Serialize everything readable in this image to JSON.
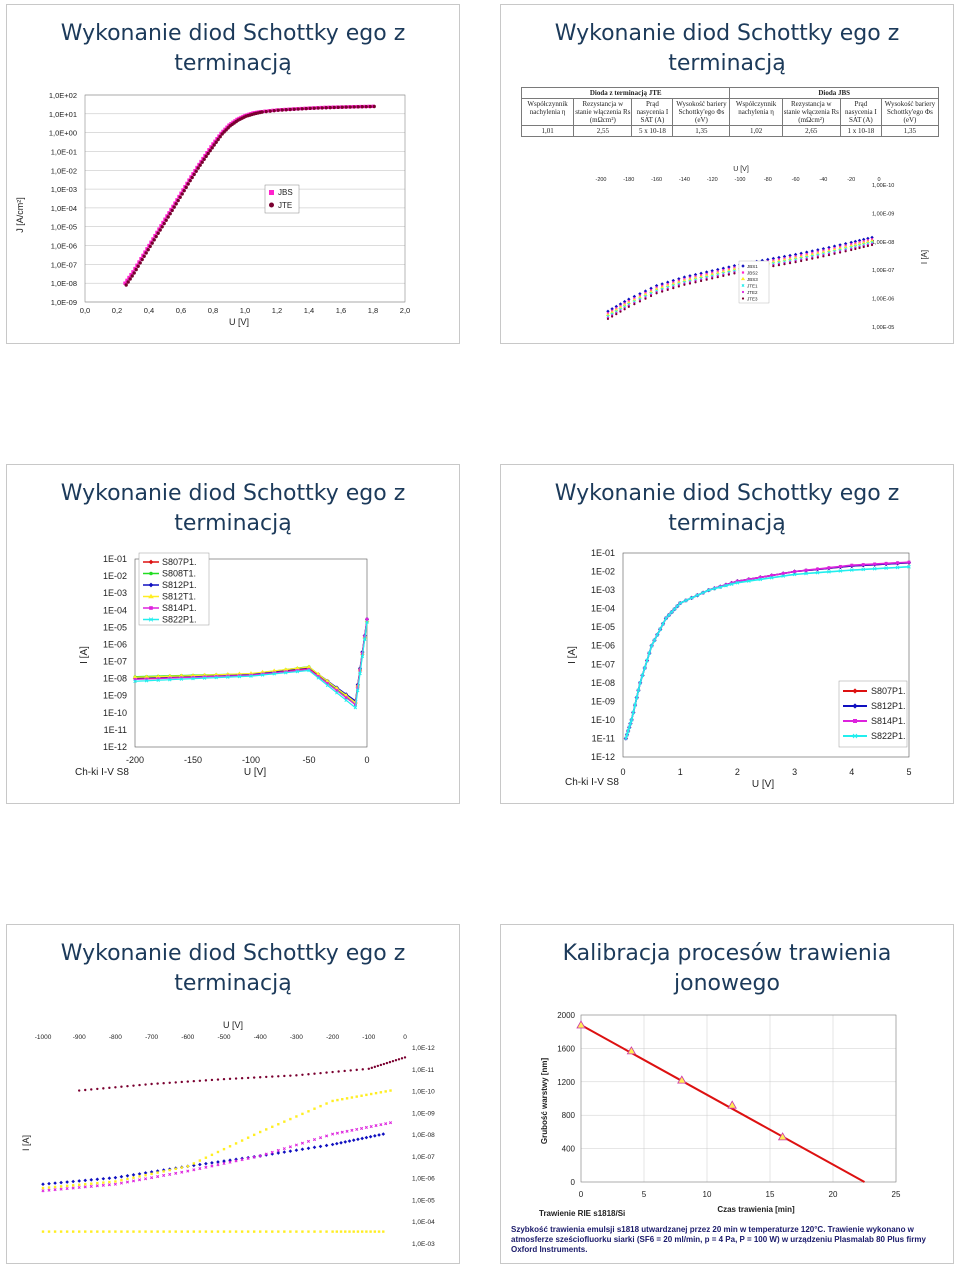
{
  "slides": {
    "s1": {
      "title_line1": "Wykonanie diod Schottky ego z",
      "title_line2": "terminacją",
      "ylabel": "J [A/cm²]",
      "xlabel": "U [V]",
      "yticks": [
        "1,0E+02",
        "1,0E+01",
        "1,0E+00",
        "1,0E-01",
        "1,0E-02",
        "1,0E-03",
        "1,0E-04",
        "1,0E-05",
        "1,0E-06",
        "1,0E-07",
        "1,0E-08",
        "1,0E-09"
      ],
      "xticks": [
        "0,0",
        "0,2",
        "0,4",
        "0,6",
        "0,8",
        "1,0",
        "1,2",
        "1,4",
        "1,6",
        "1,8",
        "2,0"
      ],
      "legend": [
        "JBS",
        "JTE"
      ]
    },
    "s2": {
      "title_line1": "Wykonanie diod Schottky ego z",
      "title_line2": "terminacją",
      "group1": "Dioda z terminacją JTE",
      "group2": "Dioda JBS",
      "headers": [
        "Współczynnik nachylenia η",
        "Rezystancja w stanie włączenia Rs (mΩcm²)",
        "Prąd nasycenia I SAT (A)",
        "Wysokość bariery Schottky'ego Φs (eV)",
        "Współczynnik nachylenia η",
        "Rezystancja w stanie włączenia Rs (mΩcm²)",
        "Prąd nasycenia I SAT (A)",
        "Wysokość bariery Schottky'ego Φs (eV)"
      ],
      "values": [
        "1,01",
        "2,55",
        "5 x 10-18",
        "1,35",
        "1,02",
        "2,65",
        "1 x 10-18",
        "1,35"
      ],
      "xlabel": "U [V]",
      "xticks": [
        "-200",
        "-180",
        "-160",
        "-140",
        "-120",
        "-100",
        "-80",
        "-60",
        "-40",
        "-20",
        "0"
      ],
      "yticks": [
        "1,00E-10",
        "1,00E-09",
        "1,00E-08",
        "1,00E-07",
        "1,00E-06",
        "1,00E-05"
      ],
      "ylabel": "I [A]",
      "legend": [
        "JBS1",
        "JBS2",
        "JBS3",
        "JTE1",
        "JTE2",
        "JTE3"
      ]
    },
    "s3": {
      "title_line1": "Wykonanie diod Schottky ego z",
      "title_line2": "terminacją",
      "ylabel": "I [A]",
      "xlabel": "U [V]",
      "yticks": [
        "1E-01",
        "1E-02",
        "1E-03",
        "1E-04",
        "1E-05",
        "1E-06",
        "1E-07",
        "1E-08",
        "1E-09",
        "1E-10",
        "1E-11",
        "1E-12"
      ],
      "xticks": [
        "-200",
        "-150",
        "-100",
        "-50",
        "0"
      ],
      "legend": [
        "S807P1.",
        "S808T1.",
        "S812P1.",
        "S812T1.",
        "S814P1.",
        "S822P1."
      ],
      "caption": "Ch-ki I-V   S8"
    },
    "s4": {
      "title_line1": "Wykonanie diod Schottky ego z",
      "title_line2": "terminacją",
      "ylabel": "I [A]",
      "xlabel": "U [V]",
      "yticks": [
        "1E-01",
        "1E-02",
        "1E-03",
        "1E-04",
        "1E-05",
        "1E-06",
        "1E-07",
        "1E-08",
        "1E-09",
        "1E-10",
        "1E-11",
        "1E-12"
      ],
      "xticks": [
        "0",
        "1",
        "2",
        "3",
        "4",
        "5"
      ],
      "legend": [
        "S807P1.",
        "S812P1.",
        "S814P1.",
        "S822P1."
      ],
      "caption": "Ch-ki I-V   S8"
    },
    "s5": {
      "title_line1": "Wykonanie diod Schottky ego z",
      "title_line2": "terminacją",
      "xlabel": "U [V]",
      "ylabel": "I [A]",
      "xticks": [
        "-1000",
        "-900",
        "-800",
        "-700",
        "-600",
        "-500",
        "-400",
        "-300",
        "-200",
        "-100",
        "0"
      ],
      "yticks": [
        "1,0E-12",
        "1,0E-11",
        "1,0E-10",
        "1,0E-09",
        "1,0E-08",
        "1,0E-07",
        "1,0E-06",
        "1,0E-05",
        "1,0E-04",
        "1,0E-03"
      ]
    },
    "s6": {
      "title_line1": "Kalibracja procesów trawienia",
      "title_line2": "jonowego",
      "ylabel": "Grubość warstwy [nm]",
      "xlabel": "Czas trawienia [min]",
      "yticks": [
        "2000",
        "1600",
        "1200",
        "800",
        "400",
        "0"
      ],
      "xticks": [
        "0",
        "5",
        "10",
        "15",
        "20",
        "25"
      ],
      "series_label": "Trawienie RIE s1818/Si",
      "note": "Szybkość trawienia emulsji s1818 utwardzanej przez 20 min w temperaturze 120°C. Trawienie wykonano w atmosferze sześciofluorku siarki (SF6 = 20 ml/min, p = 4 Pa, P = 100 W) w urządzeniu Plasmalab 80 Plus firmy Oxford Instruments."
    }
  },
  "colors": {
    "pink": "#ff22cc",
    "maroon": "#7a0030",
    "blue": "#1010c0",
    "green": "#22dd22",
    "yellow": "#ffee22",
    "cyan": "#22eeee",
    "magenta": "#dd22dd",
    "red": "#dd1111",
    "title": "#1c3a5a"
  },
  "chart_data": [
    {
      "type": "scatter",
      "ylog": true,
      "xlabel": "U [V]",
      "ylabel": "J [A/cm²]",
      "xlim": [
        0,
        2.0
      ],
      "ylim": [
        1e-09,
        100
      ],
      "series": [
        {
          "name": "JBS",
          "x": [
            0.25,
            0.3,
            0.35,
            0.4,
            0.45,
            0.5,
            0.55,
            0.6,
            0.65,
            0.7,
            0.75,
            0.8,
            0.85,
            0.9,
            0.95,
            1.0,
            1.05,
            1.1,
            1.2,
            1.3,
            1.4,
            1.5,
            1.6,
            1.7,
            1.8
          ],
          "y": [
            1e-08,
            4e-08,
            2e-07,
            1e-06,
            5e-06,
            2.5e-05,
            0.00012,
            0.0006,
            0.003,
            0.014,
            0.06,
            0.25,
            0.9,
            2.5,
            5,
            8,
            11,
            13,
            16,
            18,
            20,
            22,
            23,
            24,
            25
          ]
        },
        {
          "name": "JTE",
          "x": [
            0.25,
            0.3,
            0.35,
            0.4,
            0.45,
            0.5,
            0.55,
            0.6,
            0.65,
            0.7,
            0.75,
            0.8,
            0.85,
            0.9,
            0.95,
            1.0,
            1.05,
            1.1,
            1.2,
            1.3,
            1.4,
            1.5,
            1.6,
            1.7,
            1.8
          ],
          "y": [
            8e-09,
            3.5e-08,
            1.8e-07,
            9e-07,
            4.5e-06,
            2.2e-05,
            0.00011,
            0.00055,
            0.0028,
            0.013,
            0.055,
            0.22,
            0.85,
            2.3,
            4.6,
            7.5,
            10,
            12.5,
            15.5,
            17.5,
            19.5,
            21,
            22.5,
            23.5,
            24.5
          ]
        }
      ]
    },
    {
      "type": "scatter",
      "ylog": true,
      "xlabel": "U [V]",
      "ylabel": "I [A]",
      "xlim": [
        -200,
        0
      ],
      "ylim": [
        1e-05,
        1e-10
      ],
      "series": [
        {
          "name": "JBS1",
          "x": [
            -195,
            -180,
            -160,
            -140,
            -120,
            -100,
            -80,
            -60,
            -40,
            -20,
            -5
          ],
          "y": [
            4e-06,
            1.5e-06,
            5e-07,
            2.5e-07,
            1.5e-07,
            9e-08,
            6e-08,
            4e-08,
            2.5e-08,
            1.5e-08,
            1e-08
          ]
        },
        {
          "name": "JTE1",
          "x": [
            -195,
            -180,
            -160,
            -140,
            -120,
            -100,
            -80,
            -60,
            -40,
            -20,
            -5
          ],
          "y": [
            3e-06,
            1.2e-06,
            4e-07,
            2e-07,
            1.2e-07,
            8e-08,
            5e-08,
            3.5e-08,
            2.2e-08,
            1.3e-08,
            9e-09
          ]
        }
      ]
    },
    {
      "type": "line",
      "ylog": true,
      "xlabel": "U [V]",
      "ylabel": "I [A]",
      "xlim": [
        -200,
        0
      ],
      "ylim": [
        1e-12,
        0.1
      ],
      "series": [
        {
          "name": "S807P1.",
          "x": [
            -200,
            -150,
            -100,
            -50,
            -10,
            0
          ],
          "y": [
            1e-08,
            1.3e-08,
            1.8e-08,
            4e-08,
            4e-10,
            3e-05
          ]
        },
        {
          "name": "S808T1.",
          "x": [
            -200,
            -150,
            -100,
            -50,
            -10,
            0
          ],
          "y": [
            1.3e-08,
            1.6e-08,
            1.9e-08,
            5e-08,
            3e-10,
            2e-05
          ]
        },
        {
          "name": "S812P1.",
          "x": [
            -200,
            -150,
            -100,
            -50,
            -10,
            0
          ],
          "y": [
            1.1e-08,
            1.4e-08,
            1.8e-08,
            4.5e-08,
            5e-10,
            3e-05
          ]
        },
        {
          "name": "S812T1.",
          "x": [
            -200,
            -150,
            -100,
            -50,
            -10,
            0
          ],
          "y": [
            1.2e-08,
            1.5e-08,
            2e-08,
            4.8e-08,
            4e-10,
            2.5e-05
          ]
        },
        {
          "name": "S814P1.",
          "x": [
            -200,
            -150,
            -100,
            -50,
            -10,
            0
          ],
          "y": [
            9e-09,
            1.2e-08,
            1.6e-08,
            3.5e-08,
            3e-10,
            3e-05
          ]
        },
        {
          "name": "S822P1.",
          "x": [
            -200,
            -150,
            -100,
            -50,
            -10,
            0
          ],
          "y": [
            7e-09,
            1e-08,
            1.4e-08,
            3e-08,
            2e-10,
            2e-05
          ]
        }
      ]
    },
    {
      "type": "line",
      "ylog": true,
      "xlabel": "U [V]",
      "ylabel": "I [A]",
      "xlim": [
        0,
        5
      ],
      "ylim": [
        1e-12,
        0.1
      ],
      "series": [
        {
          "name": "S807P1.",
          "x": [
            0.05,
            0.15,
            0.3,
            0.5,
            0.75,
            1,
            1.5,
            2,
            3,
            4,
            5
          ],
          "y": [
            1e-11,
            1e-10,
            1e-08,
            1e-06,
            3e-05,
            0.0002,
            0.001,
            0.003,
            0.01,
            0.02,
            0.03
          ]
        },
        {
          "name": "S812P1.",
          "x": [
            0.05,
            0.15,
            0.3,
            0.5,
            0.75,
            1,
            1.5,
            2,
            3,
            4,
            5
          ],
          "y": [
            1e-11,
            1e-10,
            1e-08,
            1e-06,
            3e-05,
            0.0002,
            0.001,
            0.003,
            0.01,
            0.02,
            0.03
          ]
        },
        {
          "name": "S814P1.",
          "x": [
            0.05,
            0.15,
            0.3,
            0.5,
            0.75,
            1,
            1.5,
            2,
            3,
            4,
            5
          ],
          "y": [
            1e-11,
            1e-10,
            1e-08,
            1e-06,
            3e-05,
            0.0002,
            0.001,
            0.003,
            0.01,
            0.022,
            0.032
          ]
        },
        {
          "name": "S822P1.",
          "x": [
            0.05,
            0.15,
            0.3,
            0.5,
            0.75,
            1,
            1.5,
            2,
            3,
            4,
            5
          ],
          "y": [
            1e-11,
            1e-10,
            1e-08,
            1e-06,
            3e-05,
            0.0002,
            0.001,
            0.0025,
            0.007,
            0.012,
            0.018
          ]
        }
      ]
    },
    {
      "type": "scatter",
      "ylog": true,
      "xlabel": "U [V]",
      "ylabel": "I [A]",
      "xlim": [
        -1000,
        0
      ],
      "ylim": [
        1e-12,
        0.001
      ],
      "series": [
        {
          "name": "",
          "x": [
            -900,
            -700,
            -500,
            -300,
            -100,
            0
          ],
          "y": [
            1e-10,
            5e-11,
            3e-11,
            2e-11,
            1e-11,
            3e-12
          ]
        },
        {
          "name": "",
          "x": [
            -1000,
            -800,
            -600,
            -400,
            -200,
            -60
          ],
          "y": [
            2e-06,
            1e-06,
            3e-07,
            1e-07,
            3e-08,
            1e-08
          ]
        },
        {
          "name": "",
          "x": [
            -1000,
            -800,
            -600,
            -400,
            -200,
            -40
          ],
          "y": [
            3e-06,
            1.5e-06,
            3e-07,
            8e-09,
            3e-10,
            1e-10
          ]
        },
        {
          "name": "",
          "x": [
            -1000,
            -800,
            -600,
            -400,
            -200,
            -40
          ],
          "y": [
            4e-06,
            2e-06,
            5e-07,
            1e-07,
            1e-08,
            3e-09
          ]
        },
        {
          "name": "",
          "x": [
            -1000,
            -800,
            -600,
            -400,
            -200,
            -60
          ],
          "y": [
            0.0003,
            0.0003,
            0.0003,
            0.0003,
            0.0003,
            0.0003
          ]
        }
      ]
    },
    {
      "type": "line",
      "xlabel": "Czas trawienia [min]",
      "ylabel": "Grubość warstwy [nm]",
      "xlim": [
        0,
        25
      ],
      "ylim": [
        0,
        2000
      ],
      "series": [
        {
          "name": "Trawienie RIE s1818/Si",
          "x": [
            0,
            4,
            8,
            12,
            16
          ],
          "y": [
            1880,
            1570,
            1220,
            920,
            540
          ]
        }
      ],
      "fit": {
        "x": [
          0,
          22.5
        ],
        "y": [
          1880,
          0
        ]
      }
    }
  ]
}
